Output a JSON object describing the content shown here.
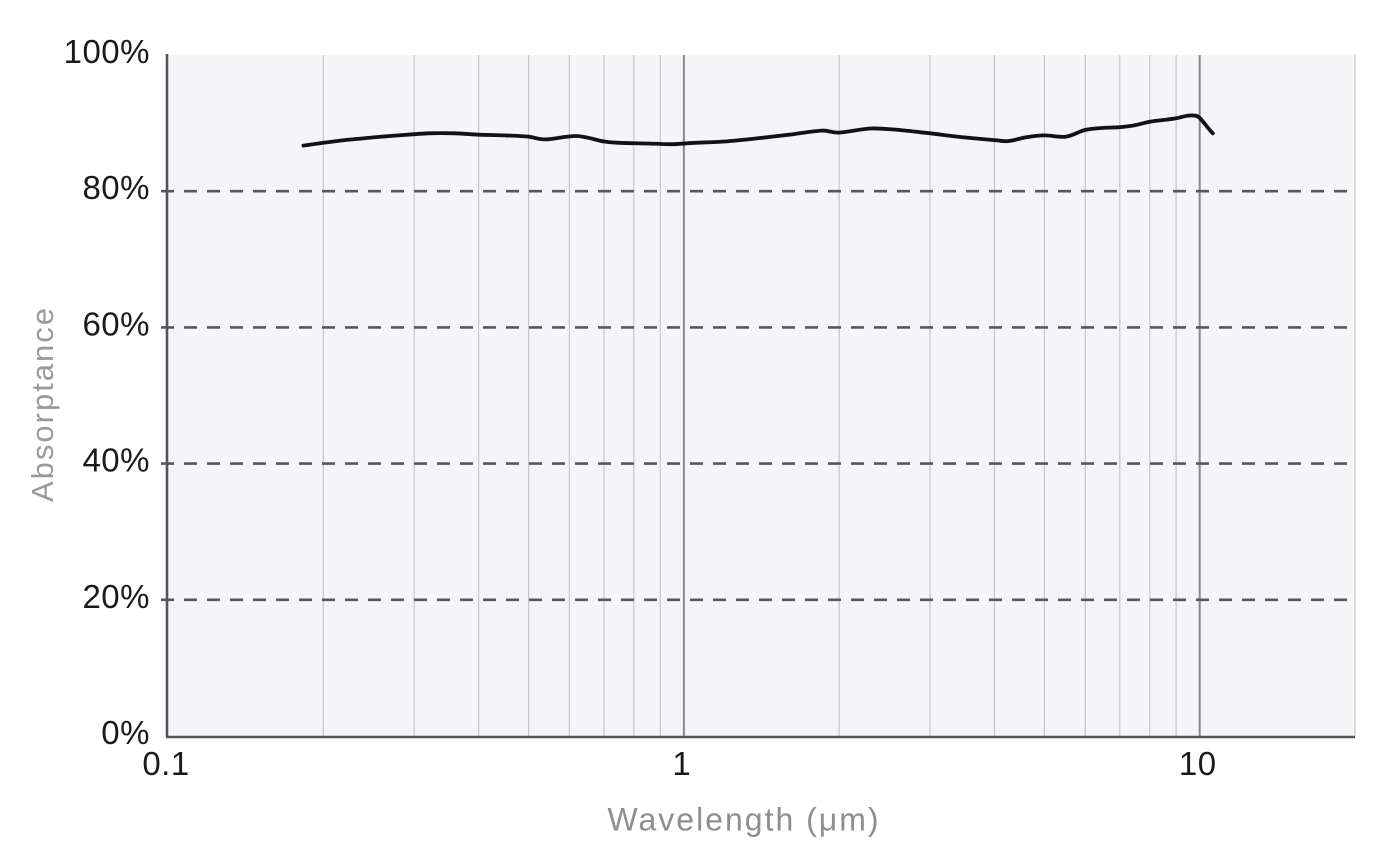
{
  "chart_data": {
    "type": "line",
    "title": "",
    "xlabel": "Wavelength (μm)",
    "ylabel": "Absorptance",
    "x_scale": "log",
    "xlim": [
      0.1,
      20
    ],
    "ylim": [
      0,
      100
    ],
    "grid": true,
    "legend": false,
    "x_major_ticks": [
      {
        "value": 0.1,
        "label": "0.1"
      },
      {
        "value": 1,
        "label": "1"
      },
      {
        "value": 10,
        "label": "10"
      }
    ],
    "x_major_gridlines": [
      1,
      10
    ],
    "x_minor_gridlines": [
      0.2,
      0.3,
      0.4,
      0.5,
      0.6,
      0.7,
      0.8,
      0.9,
      2,
      3,
      4,
      5,
      6,
      7,
      8,
      9,
      20
    ],
    "y_ticks": [
      {
        "value": 0,
        "label": "0%"
      },
      {
        "value": 20,
        "label": "20%"
      },
      {
        "value": 40,
        "label": "40%"
      },
      {
        "value": 60,
        "label": "60%"
      },
      {
        "value": 80,
        "label": "80%"
      },
      {
        "value": 100,
        "label": "100%"
      }
    ],
    "y_dashed_gridlines": [
      20,
      40,
      60,
      80
    ],
    "series": [
      {
        "name": "Absorptance",
        "color": "#131115",
        "points": [
          [
            0.183,
            86.7
          ],
          [
            0.2,
            87.1
          ],
          [
            0.22,
            87.5
          ],
          [
            0.25,
            87.9
          ],
          [
            0.28,
            88.2
          ],
          [
            0.32,
            88.5
          ],
          [
            0.36,
            88.5
          ],
          [
            0.4,
            88.3
          ],
          [
            0.45,
            88.2
          ],
          [
            0.5,
            88.0
          ],
          [
            0.54,
            87.6
          ],
          [
            0.62,
            88.1
          ],
          [
            0.7,
            87.3
          ],
          [
            0.75,
            87.1
          ],
          [
            0.85,
            87.0
          ],
          [
            0.95,
            86.9
          ],
          [
            1.05,
            87.1
          ],
          [
            1.2,
            87.3
          ],
          [
            1.4,
            87.8
          ],
          [
            1.6,
            88.3
          ],
          [
            1.85,
            88.9
          ],
          [
            2.0,
            88.6
          ],
          [
            2.3,
            89.2
          ],
          [
            2.6,
            89.0
          ],
          [
            3.0,
            88.5
          ],
          [
            3.5,
            87.9
          ],
          [
            4.0,
            87.5
          ],
          [
            4.25,
            87.35
          ],
          [
            4.6,
            87.9
          ],
          [
            5.0,
            88.2
          ],
          [
            5.5,
            88.0
          ],
          [
            6.0,
            89.0
          ],
          [
            6.5,
            89.3
          ],
          [
            7.0,
            89.4
          ],
          [
            7.5,
            89.7
          ],
          [
            8.0,
            90.2
          ],
          [
            8.5,
            90.45
          ],
          [
            9.0,
            90.7
          ],
          [
            9.5,
            91.1
          ],
          [
            9.9,
            91.0
          ],
          [
            10.15,
            90.2
          ],
          [
            10.4,
            89.2
          ],
          [
            10.6,
            88.5
          ]
        ]
      }
    ],
    "colors": {
      "line": "#131115",
      "plot_background": "#f5f4f6",
      "grid_minor": "#c7c5c9",
      "grid_major": "#8a888c",
      "grid_dashed": "#58565a",
      "axis": "#54525a",
      "tick_text": "#1b191d",
      "axis_title_y": "#9b999d",
      "axis_title_x": "#8f8d91"
    }
  }
}
